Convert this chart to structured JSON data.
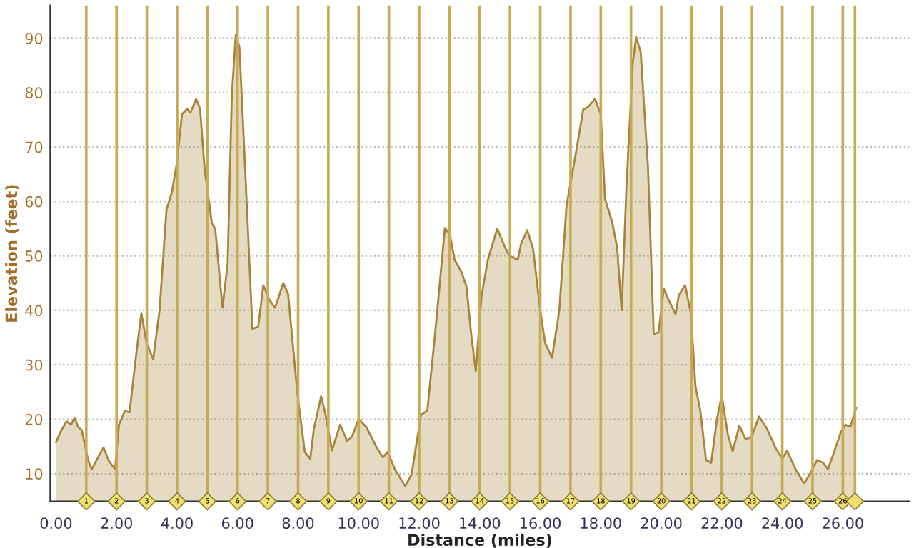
{
  "chart_data": {
    "type": "area",
    "xlabel": "Distance (miles)",
    "ylabel": "Elevation (feet)",
    "xlim": [
      -0.19,
      28.2
    ],
    "ylim": [
      4.9,
      96
    ],
    "xticks": [
      {
        "value": 0,
        "label": "0.00"
      },
      {
        "value": 2,
        "label": "2.00"
      },
      {
        "value": 4,
        "label": "4.00"
      },
      {
        "value": 6,
        "label": "6.00"
      },
      {
        "value": 8,
        "label": "8.00"
      },
      {
        "value": 10,
        "label": "10.00"
      },
      {
        "value": 12,
        "label": "12.00"
      },
      {
        "value": 14,
        "label": "14.00"
      },
      {
        "value": 16,
        "label": "16.00"
      },
      {
        "value": 18,
        "label": "18.00"
      },
      {
        "value": 20,
        "label": "20.00"
      },
      {
        "value": 22,
        "label": "22.00"
      },
      {
        "value": 24,
        "label": "24.00"
      },
      {
        "value": 26,
        "label": "26.00"
      }
    ],
    "yticks": [
      10,
      20,
      30,
      40,
      50,
      60,
      70,
      80,
      90
    ],
    "grid": "y",
    "series": [
      {
        "color": "#a8843a",
        "x": [
          0,
          0.16,
          0.35,
          0.5,
          0.61,
          0.74,
          0.85,
          1.06,
          1.18,
          1.34,
          1.57,
          1.73,
          1.95,
          2.08,
          2.27,
          2.43,
          2.63,
          2.82,
          2.99,
          3.21,
          3.42,
          3.65,
          3.84,
          4.0,
          4.16,
          4.33,
          4.44,
          4.63,
          4.76,
          4.91,
          5.15,
          5.26,
          5.5,
          5.67,
          5.81,
          5.94,
          6.06,
          6.25,
          6.49,
          6.68,
          6.85,
          7.04,
          7.24,
          7.51,
          7.67,
          7.98,
          8.22,
          8.4,
          8.52,
          8.76,
          8.91,
          9.12,
          9.39,
          9.62,
          9.78,
          10.0,
          10.25,
          10.57,
          10.8,
          10.96,
          11.2,
          11.54,
          11.75,
          12.06,
          12.27,
          12.54,
          12.85,
          13.01,
          13.17,
          13.4,
          13.56,
          13.72,
          13.87,
          14.06,
          14.27,
          14.58,
          14.85,
          14.98,
          15.26,
          15.37,
          15.57,
          15.76,
          16.0,
          16.16,
          16.39,
          16.63,
          16.87,
          17.18,
          17.42,
          17.57,
          17.81,
          18.0,
          18.14,
          18.38,
          18.54,
          18.69,
          18.85,
          19.06,
          19.17,
          19.32,
          19.56,
          19.75,
          19.91,
          20.08,
          20.27,
          20.47,
          20.58,
          20.79,
          20.98,
          21.13,
          21.29,
          21.48,
          21.65,
          21.84,
          22.0,
          22.2,
          22.36,
          22.58,
          22.79,
          22.99,
          23.23,
          23.5,
          23.78,
          24.0,
          24.16,
          24.44,
          24.72,
          24.91,
          25.15,
          25.35,
          25.51,
          25.78,
          25.94,
          26.09,
          26.25,
          26.44
        ],
        "values": [
          15.8,
          17.8,
          19.6,
          19,
          20.2,
          18.5,
          18,
          12.5,
          10.8,
          12.5,
          14.8,
          12.5,
          10.8,
          19,
          21.5,
          21.3,
          31,
          39.5,
          34,
          31,
          40,
          58.5,
          62,
          67.4,
          76,
          77,
          76.3,
          78.8,
          77,
          66,
          56,
          55,
          40.5,
          48.5,
          79.6,
          90.6,
          88.4,
          66,
          36.6,
          37,
          44.6,
          42,
          40.5,
          45,
          43,
          24.5,
          14,
          12.7,
          18.2,
          24.2,
          20.8,
          14.3,
          19,
          16,
          16.8,
          20,
          18.6,
          15.1,
          13,
          14,
          10.8,
          7.7,
          9.9,
          20.8,
          21.6,
          36.5,
          55.1,
          54,
          49.3,
          47,
          44.4,
          35.6,
          28.8,
          42.6,
          49.3,
          55,
          51.4,
          50,
          49.3,
          52.3,
          54.7,
          51.4,
          40,
          34,
          31.3,
          40,
          59.3,
          69,
          76.9,
          77.3,
          78.8,
          76,
          60.5,
          56.1,
          51.6,
          40,
          62.8,
          85.6,
          90.2,
          87.4,
          66.3,
          35.6,
          36,
          44,
          41.6,
          39.3,
          42.8,
          44.6,
          39.3,
          26,
          21.6,
          12.5,
          12,
          20,
          24.4,
          17.2,
          14.1,
          18.8,
          16.3,
          16.8,
          20.5,
          18.2,
          14.7,
          12.8,
          14.2,
          10.8,
          8.2,
          9.9,
          12.5,
          12,
          10.8,
          15.1,
          17.7,
          19,
          18.6,
          22.1
        ]
      }
    ],
    "ref_lines": [
      {
        "axis": "x",
        "value": 1,
        "label": "1",
        "color": "#c8aa55"
      },
      {
        "axis": "x",
        "value": 2,
        "label": "2",
        "color": "#c8aa55"
      },
      {
        "axis": "x",
        "value": 3,
        "label": "3",
        "color": "#c8aa55"
      },
      {
        "axis": "x",
        "value": 4,
        "label": "4",
        "color": "#c8aa55"
      },
      {
        "axis": "x",
        "value": 5,
        "label": "5",
        "color": "#c8aa55"
      },
      {
        "axis": "x",
        "value": 6,
        "label": "6",
        "color": "#c8aa55"
      },
      {
        "axis": "x",
        "value": 7,
        "label": "7",
        "color": "#c8aa55"
      },
      {
        "axis": "x",
        "value": 8,
        "label": "8",
        "color": "#c8aa55"
      },
      {
        "axis": "x",
        "value": 9,
        "label": "9",
        "color": "#c8aa55"
      },
      {
        "axis": "x",
        "value": 10,
        "label": "10",
        "color": "#c8aa55"
      },
      {
        "axis": "x",
        "value": 11,
        "label": "11",
        "color": "#c8aa55"
      },
      {
        "axis": "x",
        "value": 12,
        "label": "12",
        "color": "#c8aa55"
      },
      {
        "axis": "x",
        "value": 13,
        "label": "13",
        "color": "#c8aa55"
      },
      {
        "axis": "x",
        "value": 14,
        "label": "14",
        "color": "#c8aa55"
      },
      {
        "axis": "x",
        "value": 15,
        "label": "15",
        "color": "#c8aa55"
      },
      {
        "axis": "x",
        "value": 16,
        "label": "16",
        "color": "#c8aa55"
      },
      {
        "axis": "x",
        "value": 17,
        "label": "17",
        "color": "#c8aa55"
      },
      {
        "axis": "x",
        "value": 18,
        "label": "18",
        "color": "#c8aa55"
      },
      {
        "axis": "x",
        "value": 19,
        "label": "19",
        "color": "#c8aa55"
      },
      {
        "axis": "x",
        "value": 20,
        "label": "20",
        "color": "#c8aa55"
      },
      {
        "axis": "x",
        "value": 21,
        "label": "21",
        "color": "#c8aa55"
      },
      {
        "axis": "x",
        "value": 22,
        "label": "22",
        "color": "#c8aa55"
      },
      {
        "axis": "x",
        "value": 23,
        "label": "23",
        "color": "#c8aa55"
      },
      {
        "axis": "x",
        "value": 24,
        "label": "24",
        "color": "#c8aa55"
      },
      {
        "axis": "x",
        "value": 25,
        "label": "25",
        "color": "#c8aa55"
      },
      {
        "axis": "x",
        "value": 26,
        "label": "26",
        "color": "#c8aa55"
      },
      {
        "axis": "x",
        "value": 26.4,
        "label": null,
        "color": "#c8aa55"
      }
    ]
  }
}
